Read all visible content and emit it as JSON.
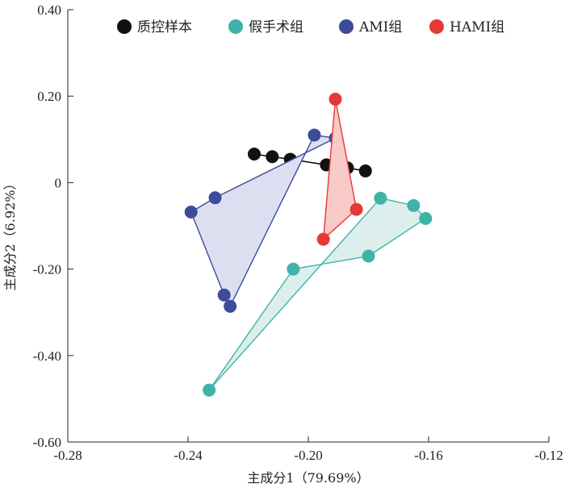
{
  "chart_data": {
    "type": "scatter",
    "title": "",
    "xlabel": "主成分1（79.69%）",
    "ylabel": "主成分2（6.92%）",
    "xlim": [
      -0.28,
      -0.12
    ],
    "ylim": [
      -0.6,
      0.4
    ],
    "xticks": [
      -0.28,
      -0.24,
      -0.2,
      -0.16,
      -0.12
    ],
    "xtick_labels": [
      "-0.28",
      "-0.24",
      "-0.20",
      "-0.16",
      "-0.12"
    ],
    "yticks": [
      0.4,
      0.2,
      0,
      -0.2,
      -0.4,
      -0.6
    ],
    "ytick_labels": [
      "0.40",
      "0.20",
      "0",
      "-0.20",
      "-0.40",
      "-0.60"
    ],
    "grid": false,
    "legend_position": "top",
    "series": [
      {
        "name": "质控样本",
        "color": "#111111",
        "shape": "line",
        "points": [
          [
            -0.218,
            0.066
          ],
          [
            -0.212,
            0.06
          ],
          [
            -0.206,
            0.054
          ],
          [
            -0.194,
            0.041
          ],
          [
            -0.187,
            0.034
          ],
          [
            -0.181,
            0.027
          ]
        ]
      },
      {
        "name": "假手术组",
        "color": "#3fb3a8",
        "fill": "#dcefec",
        "shape": "polygon",
        "points": [
          [
            -0.176,
            -0.036
          ],
          [
            -0.165,
            -0.053
          ],
          [
            -0.161,
            -0.083
          ],
          [
            -0.18,
            -0.17
          ],
          [
            -0.205,
            -0.2
          ],
          [
            -0.233,
            -0.48
          ]
        ]
      },
      {
        "name": "AMI组",
        "color": "#3d4b9a",
        "fill": "#dddef0",
        "shape": "polygon",
        "points": [
          [
            -0.198,
            0.11
          ],
          [
            -0.191,
            0.103
          ],
          [
            -0.231,
            -0.035
          ],
          [
            -0.239,
            -0.068
          ],
          [
            -0.228,
            -0.26
          ],
          [
            -0.226,
            -0.286
          ]
        ]
      },
      {
        "name": "HAMI组",
        "color": "#e53935",
        "fill": "#f7c9c7",
        "shape": "polygon",
        "points": [
          [
            -0.191,
            0.193
          ],
          [
            -0.184,
            -0.062
          ],
          [
            -0.195,
            -0.131
          ]
        ]
      }
    ]
  }
}
